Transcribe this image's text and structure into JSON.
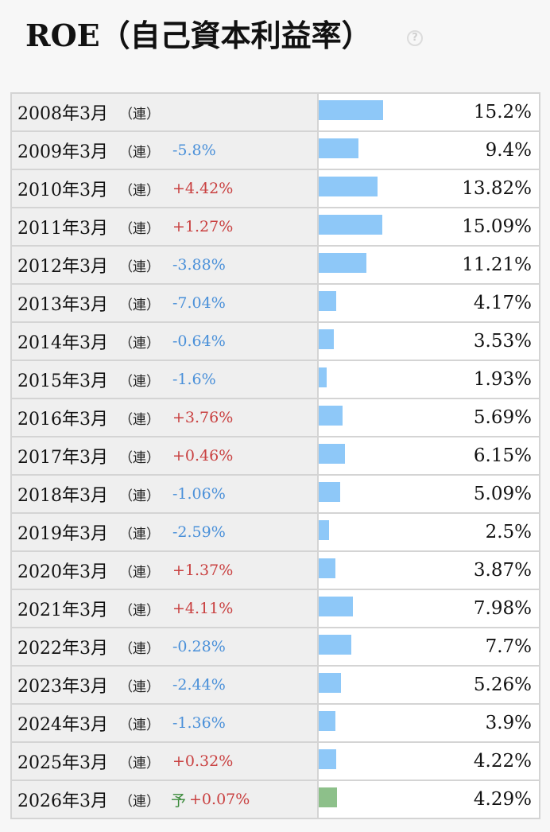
{
  "header": {
    "title": "ROE（自己資本利益率）",
    "help_icon": "question-circle-icon"
  },
  "colors": {
    "bar_actual": "#8ec8f8",
    "bar_forecast": "#8dc08a",
    "change_negative": "#4a90d9",
    "change_positive": "#c94040"
  },
  "rows": [
    {
      "period": "2008年3月",
      "type": "（連）",
      "forecast": "",
      "change": "",
      "value": "15.2%",
      "roe": 15.2
    },
    {
      "period": "2009年3月",
      "type": "（連）",
      "forecast": "",
      "change": "-5.8%",
      "value": "9.4%",
      "roe": 9.4
    },
    {
      "period": "2010年3月",
      "type": "（連）",
      "forecast": "",
      "change": "+4.42%",
      "value": "13.82%",
      "roe": 13.82
    },
    {
      "period": "2011年3月",
      "type": "（連）",
      "forecast": "",
      "change": "+1.27%",
      "value": "15.09%",
      "roe": 15.09
    },
    {
      "period": "2012年3月",
      "type": "（連）",
      "forecast": "",
      "change": "-3.88%",
      "value": "11.21%",
      "roe": 11.21
    },
    {
      "period": "2013年3月",
      "type": "（連）",
      "forecast": "",
      "change": "-7.04%",
      "value": "4.17%",
      "roe": 4.17
    },
    {
      "period": "2014年3月",
      "type": "（連）",
      "forecast": "",
      "change": "-0.64%",
      "value": "3.53%",
      "roe": 3.53
    },
    {
      "period": "2015年3月",
      "type": "（連）",
      "forecast": "",
      "change": "-1.6%",
      "value": "1.93%",
      "roe": 1.93
    },
    {
      "period": "2016年3月",
      "type": "（連）",
      "forecast": "",
      "change": "+3.76%",
      "value": "5.69%",
      "roe": 5.69
    },
    {
      "period": "2017年3月",
      "type": "（連）",
      "forecast": "",
      "change": "+0.46%",
      "value": "6.15%",
      "roe": 6.15
    },
    {
      "period": "2018年3月",
      "type": "（連）",
      "forecast": "",
      "change": "-1.06%",
      "value": "5.09%",
      "roe": 5.09
    },
    {
      "period": "2019年3月",
      "type": "（連）",
      "forecast": "",
      "change": "-2.59%",
      "value": "2.5%",
      "roe": 2.5
    },
    {
      "period": "2020年3月",
      "type": "（連）",
      "forecast": "",
      "change": "+1.37%",
      "value": "3.87%",
      "roe": 3.87
    },
    {
      "period": "2021年3月",
      "type": "（連）",
      "forecast": "",
      "change": "+4.11%",
      "value": "7.98%",
      "roe": 7.98
    },
    {
      "period": "2022年3月",
      "type": "（連）",
      "forecast": "",
      "change": "-0.28%",
      "value": "7.7%",
      "roe": 7.7
    },
    {
      "period": "2023年3月",
      "type": "（連）",
      "forecast": "",
      "change": "-2.44%",
      "value": "5.26%",
      "roe": 5.26
    },
    {
      "period": "2024年3月",
      "type": "（連）",
      "forecast": "",
      "change": "-1.36%",
      "value": "3.9%",
      "roe": 3.9
    },
    {
      "period": "2025年3月",
      "type": "（連）",
      "forecast": "",
      "change": "+0.32%",
      "value": "4.22%",
      "roe": 4.22
    },
    {
      "period": "2026年3月",
      "type": "（連）",
      "forecast": "予",
      "change": "+0.07%",
      "value": "4.29%",
      "roe": 4.29
    }
  ]
}
